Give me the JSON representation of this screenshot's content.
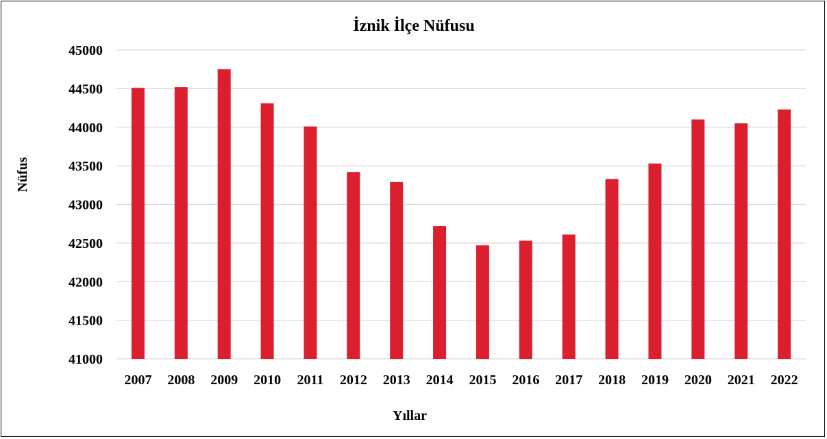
{
  "chart_data": {
    "type": "bar",
    "title": "İznik İlçe Nüfusu",
    "xlabel": "Yıllar",
    "ylabel": "Nüfus",
    "categories": [
      "2007",
      "2008",
      "2009",
      "2010",
      "2011",
      "2012",
      "2013",
      "2014",
      "2015",
      "2016",
      "2017",
      "2018",
      "2019",
      "2020",
      "2021",
      "2022"
    ],
    "values": [
      44510,
      44520,
      44750,
      44310,
      44010,
      43420,
      43290,
      42720,
      42470,
      42530,
      42610,
      43330,
      43530,
      44100,
      44050,
      44230
    ],
    "ylim": [
      41000,
      45000
    ],
    "yticks": [
      41000,
      41500,
      42000,
      42500,
      43000,
      43500,
      44000,
      44500,
      45000
    ],
    "grid": true,
    "legend": "none",
    "bar_color": "#dc1f2e"
  }
}
